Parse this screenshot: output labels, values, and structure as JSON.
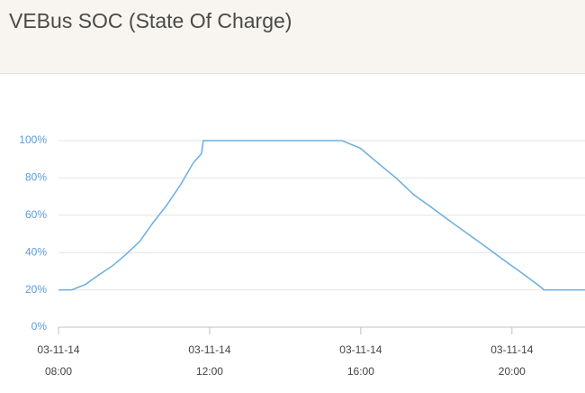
{
  "chart_data": {
    "type": "line",
    "title": "VEBus SOC (State Of Charge)",
    "x": [
      "03-11-14 08:00",
      "03-11-14 08:21",
      "03-11-14 08:43",
      "03-11-14 09:04",
      "03-11-14 09:26",
      "03-11-14 09:47",
      "03-11-14 10:09",
      "03-11-14 10:30",
      "03-11-14 10:51",
      "03-11-14 11:13",
      "03-11-14 11:34",
      "03-11-14 11:47",
      "03-11-14 11:50",
      "03-11-14 15:30",
      "03-11-14 15:44",
      "03-11-14 15:59",
      "03-11-14 16:27",
      "03-11-14 16:56",
      "03-11-14 17:24",
      "03-11-14 17:53",
      "03-11-14 18:21",
      "03-11-14 18:50",
      "03-11-14 19:19",
      "03-11-14 19:47",
      "03-11-14 20:16",
      "03-11-14 20:44",
      "03-11-14 20:51",
      "03-11-14 21:56"
    ],
    "values": [
      20,
      20,
      23,
      28,
      33,
      39,
      46,
      56,
      65,
      76,
      88,
      93,
      100,
      100,
      98,
      96,
      88,
      80,
      71,
      64,
      57,
      50,
      43,
      36,
      29,
      22,
      20,
      20
    ],
    "color": "#6aaee2",
    "xlim": [
      "03-11-14 08:00",
      "03-11-14 21:56"
    ],
    "xticks": [
      {
        "value": "03-11-14 08:00",
        "label": [
          "03-11-14",
          "08:00"
        ]
      },
      {
        "value": "03-11-14 12:00",
        "label": [
          "03-11-14",
          "12:00"
        ]
      },
      {
        "value": "03-11-14 16:00",
        "label": [
          "03-11-14",
          "16:00"
        ]
      },
      {
        "value": "03-11-14 20:00",
        "label": [
          "03-11-14",
          "20:00"
        ]
      }
    ],
    "ylim": [
      0,
      100
    ],
    "yticks": [
      {
        "value": 0,
        "label": "0%"
      },
      {
        "value": 20,
        "label": "20%"
      },
      {
        "value": 40,
        "label": "40%"
      },
      {
        "value": 60,
        "label": "60%"
      },
      {
        "value": 80,
        "label": "80%"
      },
      {
        "value": 100,
        "label": "100%"
      }
    ],
    "grid": true
  }
}
